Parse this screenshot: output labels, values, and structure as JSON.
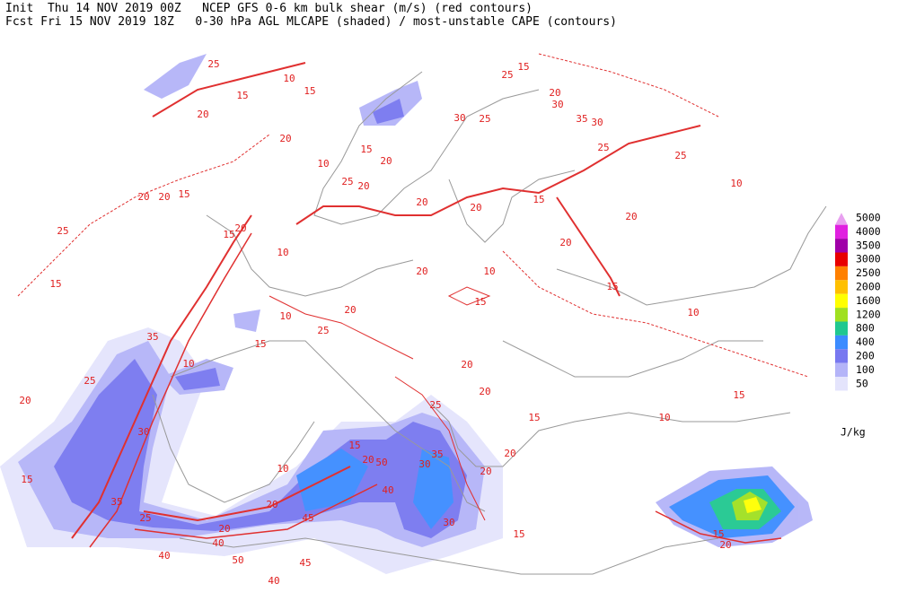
{
  "header": {
    "line1": "Init  Thu 14 NOV 2019 00Z   NCEP GFS 0-6 km bulk shear (m/s) (red contours)",
    "line2": "Fcst Fri 15 NOV 2019 18Z   0-30 hPa AGL MLCAPE (shaded) / most-unstable CAPE (contours)"
  },
  "legend": {
    "unit": "J/kg",
    "levels": [
      {
        "label": "5000",
        "color": "#e8a0f0"
      },
      {
        "label": "4000",
        "color": "#e020e0"
      },
      {
        "label": "3500",
        "color": "#a000a8"
      },
      {
        "label": "3000",
        "color": "#e80000"
      },
      {
        "label": "2500",
        "color": "#ff8000"
      },
      {
        "label": "2000",
        "color": "#ffc000"
      },
      {
        "label": "1600",
        "color": "#ffff00"
      },
      {
        "label": "1200",
        "color": "#a0e020"
      },
      {
        "label": "800",
        "color": "#20c890"
      },
      {
        "label": "400",
        "color": "#3c8cff"
      },
      {
        "label": "200",
        "color": "#7878f0"
      },
      {
        "label": "100",
        "color": "#b4b4f8"
      },
      {
        "label": "50",
        "color": "#e4e4fc"
      }
    ]
  },
  "contour_labels": [
    "25",
    "15",
    "10",
    "15",
    "20",
    "20",
    "20",
    "20",
    "15",
    "25",
    "15",
    "20",
    "25",
    "35",
    "30",
    "35",
    "25",
    "15",
    "20",
    "40",
    "40",
    "50",
    "45",
    "40",
    "20",
    "45",
    "10",
    "15",
    "20",
    "50",
    "40",
    "30",
    "35",
    "30",
    "15",
    "20",
    "20",
    "20",
    "15",
    "20",
    "25",
    "20",
    "10",
    "15",
    "15",
    "20",
    "20",
    "15",
    "10",
    "15",
    "10",
    "15",
    "20",
    "10",
    "25",
    "25",
    "35",
    "30",
    "30",
    "20",
    "25",
    "15",
    "25",
    "30",
    "20",
    "20",
    "15",
    "25",
    "20",
    "10",
    "15",
    "10",
    "25",
    "20",
    "20",
    "10",
    "10",
    "20",
    "15"
  ]
}
